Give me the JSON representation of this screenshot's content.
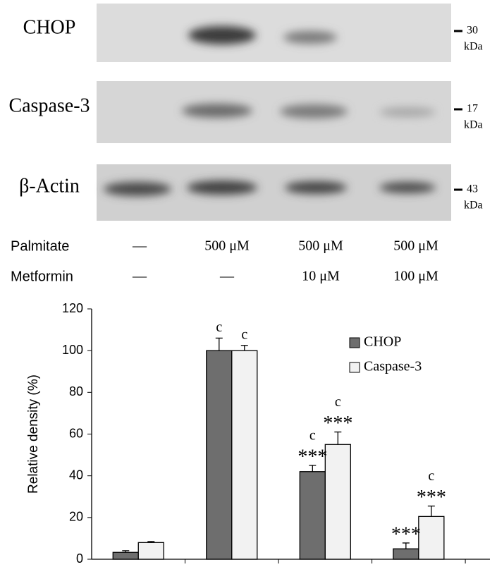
{
  "blot": {
    "rows": [
      {
        "label": "CHOP",
        "marker": "30",
        "unit": "kDa"
      },
      {
        "label": "Caspase-3",
        "marker": "17",
        "unit": "kDa"
      },
      {
        "label": "β-Actin",
        "marker": "43",
        "unit": "kDa"
      }
    ]
  },
  "treatments": {
    "rows": [
      {
        "label": "Palmitate",
        "cells": [
          "—",
          "500 μM",
          "500 μM",
          "500 μM"
        ]
      },
      {
        "label": "Metformin",
        "cells": [
          "—",
          "—",
          "10 μM",
          "100 μM"
        ]
      }
    ]
  },
  "chart_data": {
    "type": "bar",
    "ylabel": "Relative density (%)",
    "categories": [
      null,
      null,
      null,
      null
    ],
    "series": [
      {
        "name": "CHOP",
        "color": "#6e6e6e",
        "values": [
          3.3,
          100,
          42,
          5
        ],
        "errors": [
          0.8,
          6,
          3,
          2.8
        ]
      },
      {
        "name": "Caspase-3",
        "color": "#f2f2f2",
        "values": [
          8,
          100,
          55,
          20.5
        ],
        "errors": [
          0.5,
          2.5,
          6,
          5
        ]
      }
    ],
    "annotations": [
      {
        "series": 0,
        "index": 1,
        "lines": [
          "c"
        ]
      },
      {
        "series": 1,
        "index": 1,
        "lines": [
          "c"
        ]
      },
      {
        "series": 0,
        "index": 2,
        "lines": [
          "c",
          "***"
        ]
      },
      {
        "series": 1,
        "index": 2,
        "lines": [
          "c",
          "***"
        ]
      },
      {
        "series": 0,
        "index": 3,
        "lines": [
          "***"
        ]
      },
      {
        "series": 1,
        "index": 3,
        "lines": [
          "c",
          "***"
        ]
      }
    ],
    "ylim": [
      0,
      120
    ],
    "yticks": [
      0,
      20,
      40,
      60,
      80,
      100,
      120
    ],
    "grid": false,
    "legend": "upper right"
  }
}
